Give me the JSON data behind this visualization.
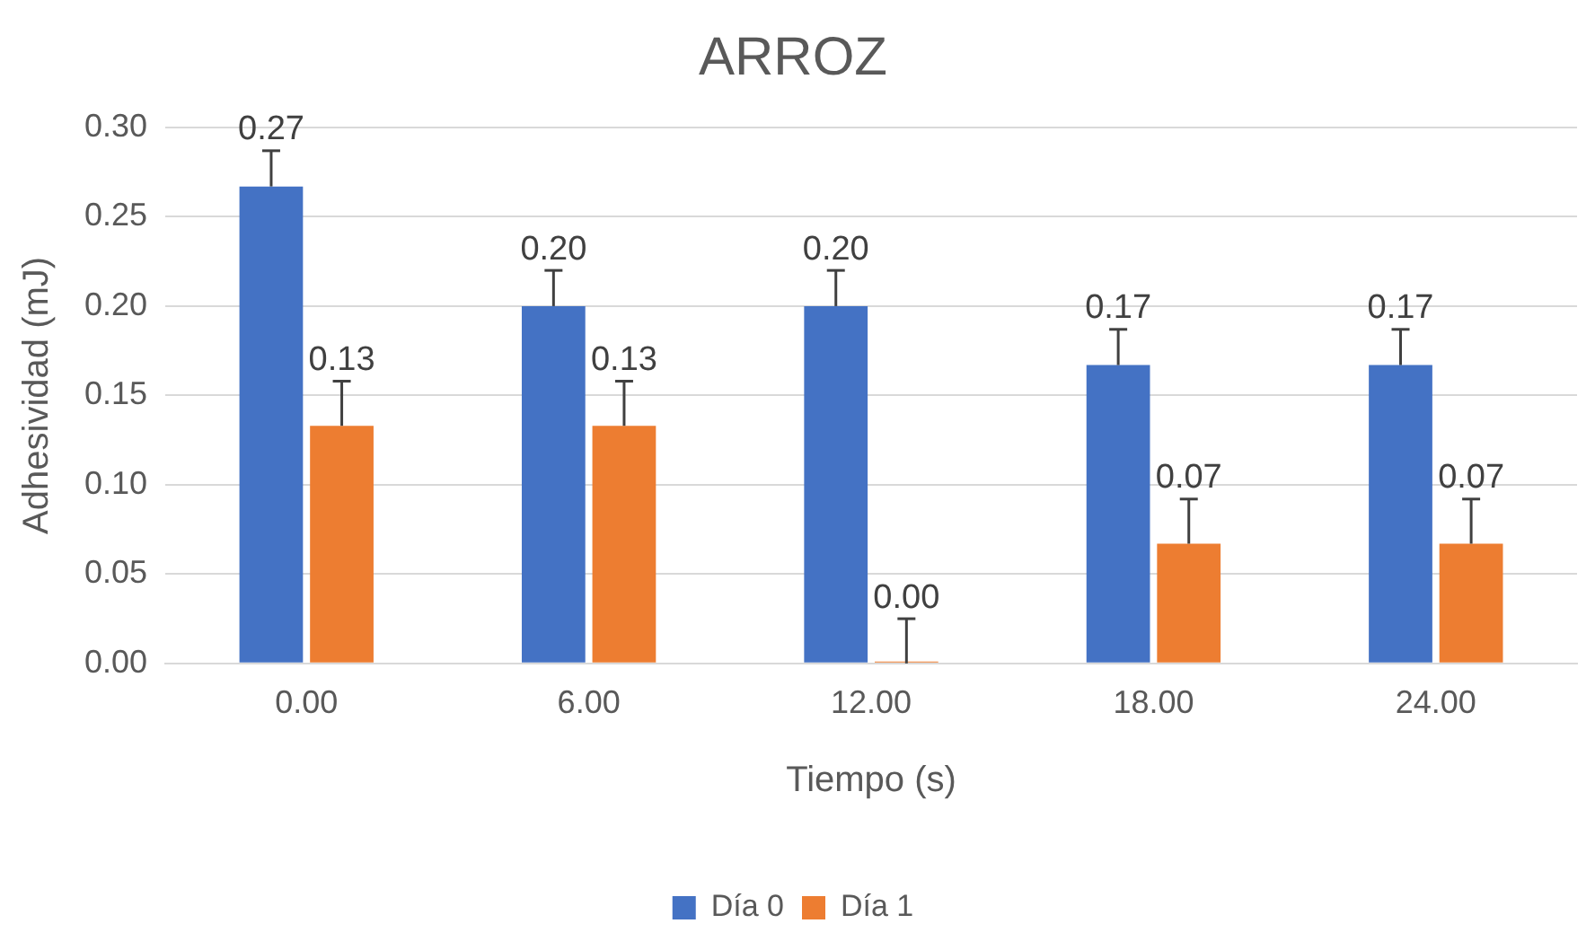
{
  "chart_data": {
    "type": "bar",
    "title": "ARROZ",
    "xlabel": "Tiempo (s)",
    "ylabel": "Adhesividad (mJ)",
    "categories": [
      "0.00",
      "6.00",
      "12.00",
      "18.00",
      "24.00"
    ],
    "series": [
      {
        "name": "Día 0",
        "color": "#4472c4",
        "values": [
          0.267,
          0.2,
          0.2,
          0.167,
          0.167
        ],
        "value_labels": [
          "0.27",
          "0.20",
          "0.20",
          "0.17",
          "0.17"
        ],
        "errors": [
          [
            0.267,
            0.287
          ],
          [
            0.2,
            0.22
          ],
          [
            0.2,
            0.22
          ],
          [
            0.167,
            0.187
          ],
          [
            0.167,
            0.187
          ]
        ]
      },
      {
        "name": "Día 1",
        "color": "#ed7d31",
        "values": [
          0.133,
          0.133,
          0,
          0.067,
          0.067
        ],
        "value_labels": [
          "0.13",
          "0.13",
          "0.00",
          "0.07",
          "0.07"
        ],
        "errors": [
          [
            0.133,
            0.158
          ],
          [
            0.133,
            0.158
          ],
          [
            0,
            0.025
          ],
          [
            0.067,
            0.092
          ],
          [
            0.067,
            0.092
          ]
        ]
      }
    ],
    "ylim": [
      0,
      0.3
    ],
    "yticks": [
      {
        "value": 0,
        "label": "0.00"
      },
      {
        "value": 0.05,
        "label": "0.05"
      },
      {
        "value": 0.1,
        "label": "0.10"
      },
      {
        "value": 0.15,
        "label": "0.15"
      },
      {
        "value": 0.2,
        "label": "0.20"
      },
      {
        "value": 0.25,
        "label": "0.25"
      },
      {
        "value": 0.3,
        "label": "0.30"
      }
    ],
    "grid": "y",
    "legend": "bottom"
  }
}
